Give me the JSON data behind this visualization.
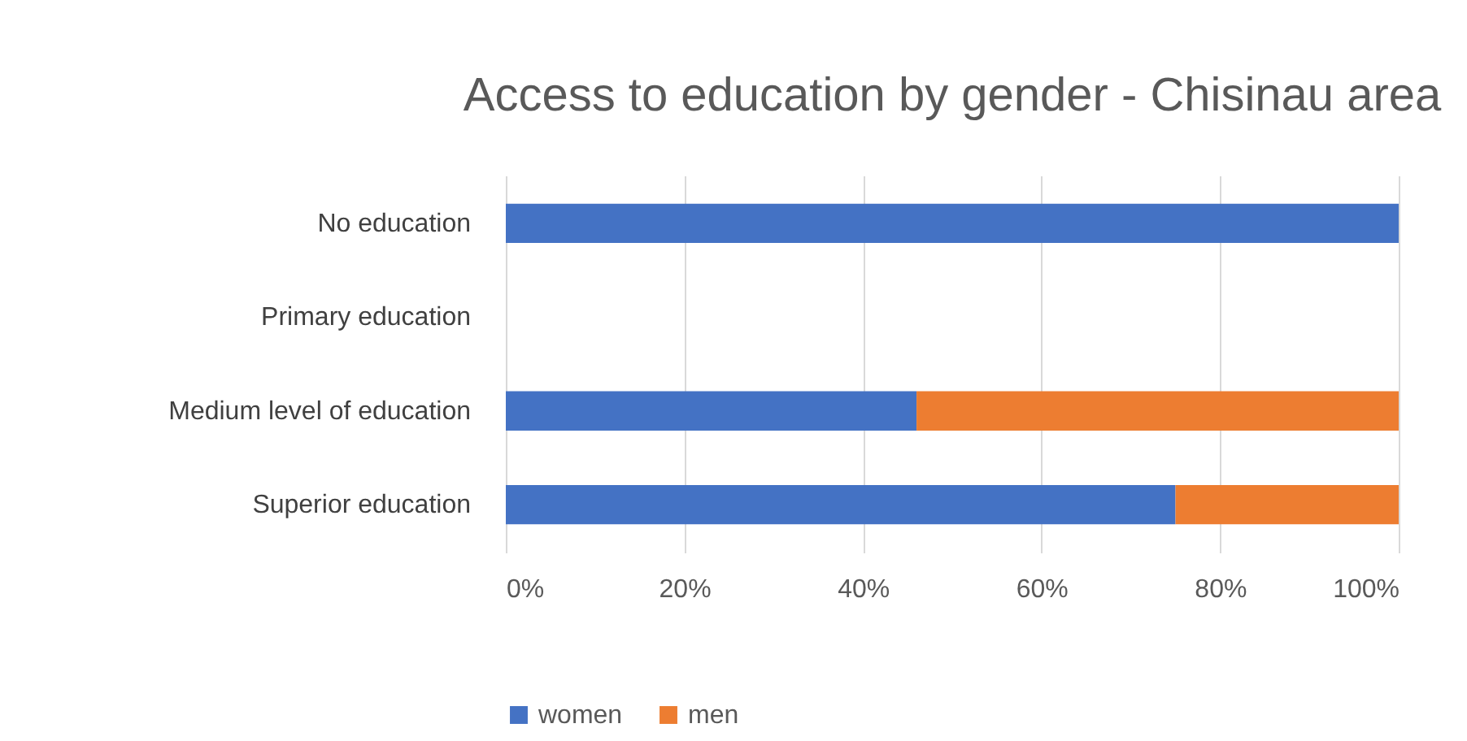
{
  "chart_data": {
    "type": "bar",
    "orientation": "horizontal",
    "stacked": true,
    "title": "Access to education by gender - Chisinau area",
    "categories": [
      "No education",
      "Primary education",
      "Medium level of education",
      "Superior education"
    ],
    "series": [
      {
        "name": "women",
        "color": "#4472c4",
        "values": [
          100,
          null,
          46,
          75
        ]
      },
      {
        "name": "men",
        "color": "#ed7d31",
        "values": [
          0,
          null,
          54,
          25
        ]
      }
    ],
    "xlim": [
      0,
      100
    ],
    "xticks": [
      {
        "value": 0,
        "label": "0%"
      },
      {
        "value": 20,
        "label": "20%"
      },
      {
        "value": 40,
        "label": "40%"
      },
      {
        "value": 60,
        "label": "60%"
      },
      {
        "value": 80,
        "label": "80%"
      },
      {
        "value": 100,
        "label": "100%"
      }
    ],
    "grid": "x",
    "legend": "bottom"
  }
}
